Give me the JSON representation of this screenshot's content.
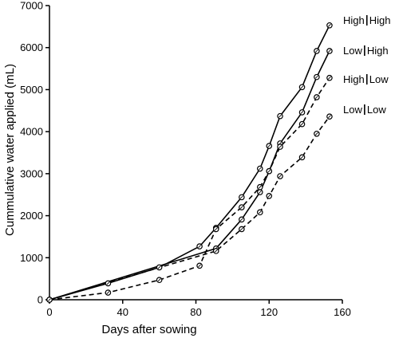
{
  "chart_data": {
    "type": "line",
    "xlabel": "Days after sowing",
    "ylabel": "Cummulative water applied (mL)",
    "xlim": [
      0,
      160
    ],
    "ylim": [
      0,
      7000
    ],
    "xticks": [
      0,
      40,
      80,
      120,
      160
    ],
    "yticks": [
      0,
      1000,
      2000,
      3000,
      4000,
      5000,
      6000,
      7000
    ],
    "grid": false,
    "legend": "inline labels at line ends (right)",
    "series": [
      {
        "name": "High|High",
        "line_style": "solid",
        "x": [
          0,
          32,
          60,
          82,
          91,
          105,
          115,
          120,
          126,
          138,
          146,
          153
        ],
        "y": [
          0,
          390,
          770,
          1270,
          1710,
          2440,
          3120,
          3660,
          4370,
          5060,
          5920,
          6530
        ]
      },
      {
        "name": "Low|High",
        "line_style": "solid",
        "x": [
          0,
          91,
          105,
          115,
          120,
          126,
          138,
          146,
          153
        ],
        "y": [
          0,
          1220,
          1910,
          2560,
          3060,
          3720,
          4460,
          5300,
          5920
        ]
      },
      {
        "name": "High|Low",
        "line_style": "dashed",
        "x": [
          0,
          32,
          60,
          82,
          91,
          105,
          115,
          120,
          126,
          138,
          146,
          153
        ],
        "y": [
          0,
          170,
          470,
          810,
          1680,
          2200,
          2680,
          3060,
          3640,
          4180,
          4820,
          5280
        ]
      },
      {
        "name": "Low|Low",
        "line_style": "dashed",
        "x": [
          0,
          91,
          105,
          115,
          120,
          126,
          138,
          146,
          153
        ],
        "y": [
          0,
          1160,
          1680,
          2080,
          2470,
          2940,
          3390,
          3950,
          4360
        ]
      }
    ],
    "labels": [
      {
        "left": "High",
        "right": "High"
      },
      {
        "left": "Low",
        "right": "High"
      },
      {
        "left": "High",
        "right": "Low"
      },
      {
        "left": "Low",
        "right": "Low"
      }
    ]
  }
}
